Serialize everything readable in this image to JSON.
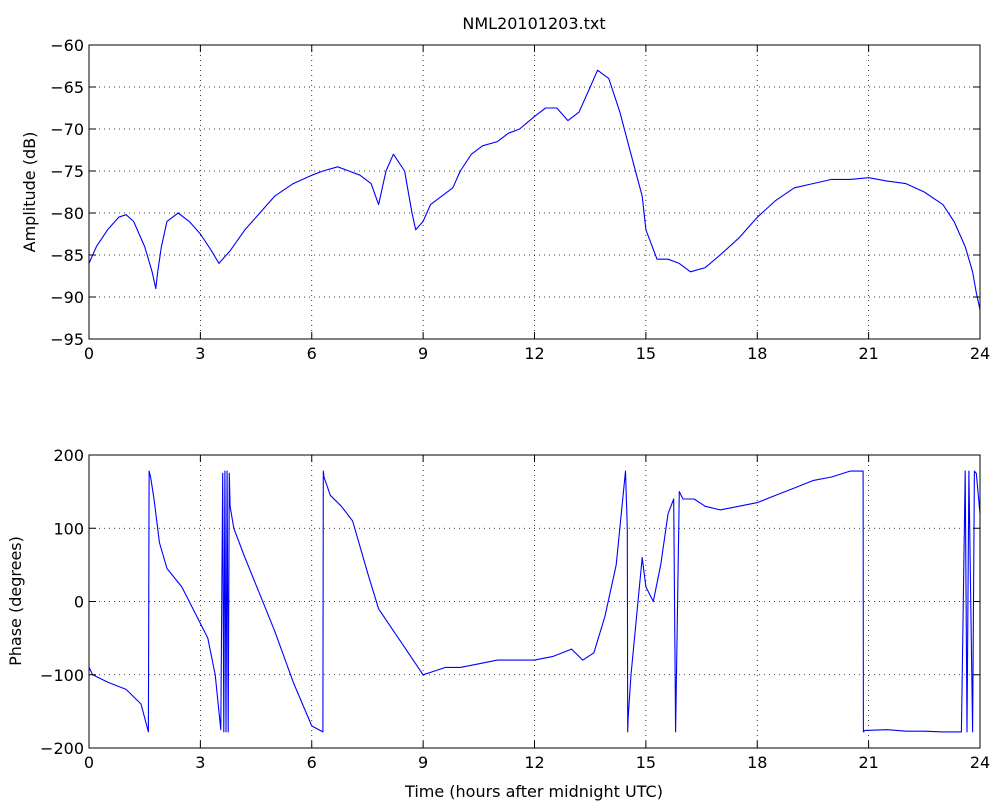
{
  "chart_data": [
    {
      "type": "line",
      "title": "NML20101203.txt",
      "xlabel": "",
      "ylabel": "Amplitude (dB)",
      "xlim": [
        0,
        24
      ],
      "ylim": [
        -95,
        -60
      ],
      "xticks": [
        0,
        3,
        6,
        9,
        12,
        15,
        18,
        21,
        24
      ],
      "yticks": [
        -95,
        -90,
        -85,
        -80,
        -75,
        -70,
        -65,
        -60
      ],
      "grid": true,
      "series": [
        {
          "color": "#0000ff",
          "x": [
            0,
            0.2,
            0.5,
            0.8,
            1.0,
            1.2,
            1.5,
            1.7,
            1.8,
            1.85,
            1.95,
            2.1,
            2.4,
            2.7,
            3.0,
            3.3,
            3.5,
            3.8,
            4.2,
            4.6,
            5.0,
            5.5,
            6.0,
            6.3,
            6.7,
            7.0,
            7.3,
            7.6,
            7.8,
            8.0,
            8.2,
            8.5,
            8.7,
            8.8,
            9.0,
            9.2,
            9.5,
            9.8,
            10.0,
            10.3,
            10.6,
            11.0,
            11.3,
            11.6,
            12.0,
            12.3,
            12.6,
            12.9,
            13.2,
            13.5,
            13.7,
            14.0,
            14.3,
            14.6,
            14.9,
            15.0,
            15.3,
            15.6,
            15.9,
            16.2,
            16.6,
            17.0,
            17.5,
            18.0,
            18.5,
            19.0,
            19.5,
            20.0,
            20.5,
            21.0,
            21.5,
            22.0,
            22.5,
            23.0,
            23.3,
            23.6,
            23.8,
            23.9,
            24.0
          ],
          "values": [
            -86,
            -84,
            -82,
            -80.5,
            -80.2,
            -81,
            -84,
            -87,
            -89,
            -87,
            -84,
            -81,
            -80,
            -81,
            -82.5,
            -84.5,
            -86,
            -84.5,
            -82,
            -80,
            -78,
            -76.5,
            -75.5,
            -75,
            -74.5,
            -75,
            -75.5,
            -76.5,
            -79,
            -75,
            -73,
            -75,
            -80,
            -82,
            -81,
            -79,
            -78,
            -77,
            -75,
            -73,
            -72,
            -71.5,
            -70.5,
            -70,
            -68.5,
            -67.5,
            -67.5,
            -69,
            -68,
            -65,
            -63,
            -64,
            -68,
            -73,
            -78,
            -82,
            -85.5,
            -85.5,
            -86,
            -87,
            -86.5,
            -85,
            -83,
            -80.5,
            -78.5,
            -77,
            -76.5,
            -76,
            -76,
            -75.8,
            -76.2,
            -76.5,
            -77.5,
            -79,
            -81,
            -84,
            -87,
            -89.5,
            -91.5
          ]
        }
      ]
    },
    {
      "type": "line",
      "title": "",
      "xlabel": "Time (hours after midnight UTC)",
      "ylabel": "Phase (degrees)",
      "xlim": [
        0,
        24
      ],
      "ylim": [
        -200,
        200
      ],
      "xticks": [
        0,
        3,
        6,
        9,
        12,
        15,
        18,
        21,
        24
      ],
      "yticks": [
        -200,
        -100,
        0,
        100,
        200
      ],
      "grid": true,
      "series": [
        {
          "color": "#0000ff",
          "x": [
            0,
            0.1,
            0.5,
            1.0,
            1.4,
            1.6,
            1.62,
            1.66,
            1.75,
            1.9,
            2.1,
            2.5,
            2.9,
            3.2,
            3.4,
            3.55,
            3.6,
            3.63,
            3.66,
            3.69,
            3.72,
            3.75,
            3.78,
            3.8,
            3.9,
            4.2,
            4.6,
            5.0,
            5.5,
            6.0,
            6.3,
            6.31,
            6.33,
            6.5,
            6.8,
            7.1,
            7.5,
            7.8,
            8.2,
            8.6,
            9.0,
            9.3,
            9.6,
            10.0,
            10.5,
            11.0,
            11.5,
            12.0,
            12.5,
            13.0,
            13.3,
            13.6,
            13.9,
            14.2,
            14.45,
            14.5,
            14.51,
            14.52,
            14.6,
            14.75,
            14.9,
            15.0,
            15.2,
            15.4,
            15.6,
            15.75,
            15.8,
            15.9,
            16.0,
            16.3,
            16.6,
            17.0,
            17.5,
            18.0,
            18.5,
            19.0,
            19.5,
            20.0,
            20.5,
            20.85,
            20.86,
            20.9,
            21.5,
            22.0,
            22.5,
            23.0,
            23.5,
            23.6,
            23.65,
            23.7,
            23.8,
            23.85,
            23.9,
            24.0
          ],
          "values": [
            -90,
            -100,
            -110,
            -120,
            -140,
            -178,
            178,
            170,
            140,
            80,
            45,
            20,
            -20,
            -50,
            -100,
            -175,
            175,
            -178,
            178,
            -178,
            178,
            -178,
            175,
            130,
            100,
            60,
            10,
            -40,
            -110,
            -170,
            -178,
            178,
            170,
            145,
            130,
            110,
            40,
            -10,
            -40,
            -70,
            -100,
            -95,
            -90,
            -90,
            -85,
            -80,
            -80,
            -80,
            -75,
            -65,
            -80,
            -70,
            -20,
            50,
            178,
            100,
            -178,
            -160,
            -100,
            -20,
            60,
            20,
            0,
            50,
            120,
            140,
            -178,
            150,
            140,
            140,
            130,
            125,
            130,
            135,
            145,
            155,
            165,
            170,
            178,
            178,
            -178,
            -176,
            -175,
            -177,
            -177,
            -178,
            -178,
            178,
            -178,
            178,
            -178,
            178,
            175,
            120
          ]
        }
      ]
    }
  ]
}
